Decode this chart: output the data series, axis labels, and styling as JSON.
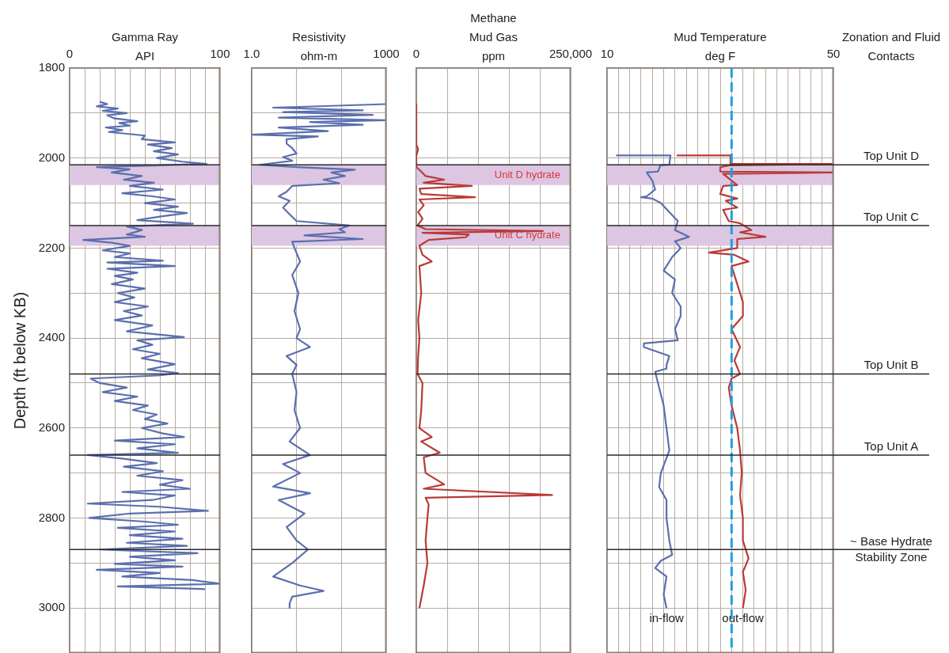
{
  "chart_data": [
    {
      "type": "line",
      "title": "Gamma Ray",
      "xlabel": "API",
      "ylabel": "Depth (ft below KB)",
      "xlim": [
        0,
        100
      ],
      "xticks": [
        0,
        {
          "value": 10,
          "label": null
        },
        {
          "value": 20,
          "label": null
        },
        {
          "value": 30,
          "label": null
        },
        {
          "value": 40,
          "label": null
        },
        {
          "value": 50,
          "label": null
        },
        {
          "value": 60,
          "label": null
        },
        {
          "value": 70,
          "label": null
        },
        {
          "value": 80,
          "label": null
        },
        {
          "value": 90,
          "label": null
        },
        100
      ],
      "ylim": [
        3100,
        1800
      ],
      "yticks": [
        1800,
        {
          "value": 1900,
          "label": null
        },
        2000,
        {
          "value": 2100,
          "label": null
        },
        2200,
        {
          "value": 2300,
          "label": null
        },
        2400,
        {
          "value": 2500,
          "label": null
        },
        2600,
        {
          "value": 2700,
          "label": null
        },
        2800,
        {
          "value": 2900,
          "label": null
        },
        3000
      ],
      "grid": true,
      "series": [
        {
          "color": "#5a6fae",
          "x": [
            20,
            25,
            18,
            32,
            22,
            38,
            25,
            30,
            45,
            33,
            40,
            24,
            35,
            26,
            50,
            48,
            70,
            52,
            68,
            56,
            72,
            58,
            75,
            91,
            60,
            18,
            40,
            28,
            48,
            36,
            56,
            40,
            62,
            35,
            55,
            70,
            50,
            72,
            56,
            78,
            60,
            45,
            82,
            38,
            48,
            38,
            50,
            9,
            28,
            40,
            22,
            40,
            30,
            62,
            25,
            70,
            25,
            45,
            30,
            42,
            28,
            50,
            32,
            43,
            30,
            52,
            36,
            48,
            30,
            55,
            38,
            76,
            45,
            55,
            42,
            60,
            48,
            70,
            52,
            72,
            60,
            14,
            20,
            38,
            22,
            45,
            30,
            52,
            42,
            58,
            50,
            65,
            48,
            62,
            76,
            30,
            70,
            45,
            72,
            12,
            35,
            58,
            36,
            62,
            45,
            75,
            60,
            80,
            35,
            70,
            55,
            12,
            60,
            92,
            40,
            13,
            50,
            72,
            32,
            70,
            40,
            75,
            38,
            78,
            20,
            85,
            40,
            70,
            30,
            75,
            18,
            60,
            35,
            82,
            100,
            32,
            90
          ],
          "values": [
            1875,
            1880,
            1885,
            1890,
            1895,
            1900,
            1905,
            1912,
            1918,
            1922,
            1928,
            1932,
            1938,
            1942,
            1950,
            1958,
            1965,
            1970,
            1978,
            1985,
            1992,
            2000,
            2008,
            2013,
            2016,
            2020,
            2025,
            2032,
            2040,
            2048,
            2055,
            2062,
            2070,
            2078,
            2085,
            2092,
            2100,
            2108,
            2115,
            2122,
            2130,
            2138,
            2146,
            2152,
            2160,
            2170,
            2175,
            2182,
            2188,
            2195,
            2205,
            2212,
            2220,
            2228,
            2232,
            2240,
            2246,
            2255,
            2262,
            2270,
            2280,
            2290,
            2300,
            2310,
            2320,
            2330,
            2340,
            2350,
            2360,
            2372,
            2385,
            2398,
            2405,
            2415,
            2425,
            2435,
            2445,
            2458,
            2470,
            2478,
            2483,
            2490,
            2500,
            2510,
            2520,
            2530,
            2540,
            2550,
            2560,
            2570,
            2580,
            2590,
            2600,
            2612,
            2620,
            2628,
            2636,
            2645,
            2655,
            2660,
            2668,
            2678,
            2686,
            2696,
            2706,
            2716,
            2726,
            2735,
            2742,
            2750,
            2760,
            2768,
            2775,
            2784,
            2790,
            2800,
            2808,
            2815,
            2822,
            2830,
            2838,
            2846,
            2855,
            2862,
            2870,
            2878,
            2886,
            2894,
            2902,
            2908,
            2915,
            2922,
            2930,
            2938,
            2946,
            2952,
            2958
          ]
        }
      ],
      "ref_lines": [
        {
          "axis": "y",
          "value": 2015
        },
        {
          "axis": "y",
          "value": 2150
        },
        {
          "axis": "y",
          "value": 2480
        },
        {
          "axis": "y",
          "value": 2660
        },
        {
          "axis": "y",
          "value": 2870
        }
      ],
      "bands": [
        {
          "axis": "y",
          "from": 2015,
          "to": 2060,
          "color": "#dcc6e2"
        },
        {
          "axis": "y",
          "from": 2150,
          "to": 2195,
          "color": "#dcc6e2"
        }
      ]
    },
    {
      "type": "line",
      "title": "Resistivity",
      "xlabel": "ohm-m",
      "log": "x",
      "tick_labels": "x",
      "xlim": [
        1,
        1000
      ],
      "xticks": [
        {
          "value": 1,
          "label": "1.0"
        },
        {
          "value": 10,
          "label": null
        },
        {
          "value": 100,
          "label": null
        },
        1000
      ],
      "ylim": [
        3100,
        1800
      ],
      "yticks": [
        1800,
        1900,
        2000,
        2100,
        2200,
        2300,
        2400,
        2500,
        2600,
        2700,
        2800,
        2900,
        3000
      ],
      "grid": true,
      "series": [
        {
          "color": "#5a6fae",
          "x": [
            1000,
            60,
            3,
            300,
            5,
            500,
            4,
            1000,
            20,
            300,
            4,
            50,
            1,
            30,
            6,
            6,
            8,
            10,
            5,
            8,
            1.5,
            10,
            200,
            60,
            120,
            40,
            90,
            8,
            6,
            4,
            7,
            5,
            7,
            10,
            150,
            90,
            120,
            15,
            300,
            8,
            9,
            12,
            8,
            11,
            9,
            12,
            10,
            20,
            6,
            10,
            8,
            10,
            9,
            12,
            7,
            20,
            5,
            12,
            3,
            20,
            4,
            15,
            6,
            10,
            18,
            8,
            3,
            12,
            40,
            8,
            7,
            7
          ],
          "values": [
            1880,
            1884,
            1888,
            1894,
            1898,
            1904,
            1910,
            1916,
            1920,
            1926,
            1932,
            1940,
            1948,
            1952,
            1958,
            1968,
            1978,
            1990,
            1998,
            2006,
            2015,
            2020,
            2026,
            2032,
            2040,
            2048,
            2056,
            2062,
            2075,
            2085,
            2095,
            2110,
            2125,
            2140,
            2150,
            2158,
            2165,
            2172,
            2180,
            2186,
            2200,
            2230,
            2260,
            2300,
            2340,
            2380,
            2400,
            2420,
            2440,
            2460,
            2480,
            2520,
            2560,
            2600,
            2630,
            2660,
            2680,
            2700,
            2730,
            2745,
            2760,
            2790,
            2820,
            2850,
            2870,
            2900,
            2930,
            2950,
            2962,
            2975,
            2990,
            3000
          ]
        }
      ],
      "ref_lines": [
        {
          "axis": "y",
          "value": 2015
        },
        {
          "axis": "y",
          "value": 2150
        },
        {
          "axis": "y",
          "value": 2480
        },
        {
          "axis": "y",
          "value": 2660
        },
        {
          "axis": "y",
          "value": 2870
        }
      ],
      "bands": [
        {
          "axis": "y",
          "from": 2015,
          "to": 2060,
          "color": "#dcc6e2"
        },
        {
          "axis": "y",
          "from": 2150,
          "to": 2195,
          "color": "#dcc6e2"
        }
      ]
    },
    {
      "type": "line",
      "title": "Methane Mud Gas",
      "xlabel": "ppm",
      "tick_labels": "x",
      "xlim": [
        0,
        250000
      ],
      "xticks": [
        0,
        {
          "value": 50000,
          "label": null
        },
        {
          "value": 100000,
          "label": null
        },
        {
          "value": 150000,
          "label": null
        },
        {
          "value": 200000,
          "label": null
        },
        {
          "value": 250000,
          "label": "250,000"
        }
      ],
      "ylim": [
        3100,
        1800
      ],
      "yticks": [
        1800,
        1900,
        2000,
        2100,
        2200,
        2300,
        2400,
        2500,
        2600,
        2700,
        2800,
        2900,
        3000
      ],
      "grid": true,
      "series": [
        {
          "color": "#b93a36",
          "x": [
            0,
            0,
            3000,
            0,
            0,
            8000,
            15000,
            45000,
            12000,
            90000,
            5000,
            8000,
            95000,
            5000,
            12000,
            3000,
            10000,
            2000,
            15000,
            205000,
            10000,
            85000,
            80000,
            20000,
            5000,
            10000,
            25000,
            5000,
            8000,
            3000,
            5000,
            3000,
            2000,
            10000,
            8000,
            5000,
            25000,
            8000,
            38000,
            12000,
            15000,
            45000,
            12000,
            220000,
            15000,
            20000,
            18000,
            15000,
            18000,
            12000,
            5000
          ],
          "values": [
            1880,
            1970,
            1980,
            1995,
            2020,
            2030,
            2040,
            2048,
            2055,
            2062,
            2068,
            2080,
            2087,
            2092,
            2105,
            2120,
            2135,
            2150,
            2158,
            2162,
            2166,
            2170,
            2176,
            2182,
            2195,
            2215,
            2230,
            2240,
            2300,
            2360,
            2400,
            2440,
            2480,
            2500,
            2560,
            2600,
            2620,
            2630,
            2655,
            2665,
            2700,
            2725,
            2735,
            2749,
            2755,
            2770,
            2800,
            2850,
            2900,
            2950,
            3000
          ]
        }
      ],
      "ref_lines": [
        {
          "axis": "y",
          "value": 2015
        },
        {
          "axis": "y",
          "value": 2150
        },
        {
          "axis": "y",
          "value": 2480
        },
        {
          "axis": "y",
          "value": 2660
        },
        {
          "axis": "y",
          "value": 2870
        }
      ],
      "bands": [
        {
          "axis": "y",
          "from": 2015,
          "to": 2060,
          "color": "#dcc6e2",
          "label": "Unit D hydrate"
        },
        {
          "axis": "y",
          "from": 2150,
          "to": 2195,
          "color": "#dcc6e2",
          "label": "Unit C hydrate"
        }
      ]
    },
    {
      "type": "line",
      "title": "Mud Temperature",
      "xlabel": "deg F",
      "tick_labels": "x",
      "xlim": [
        10,
        50
      ],
      "xticks": [
        10,
        {
          "value": 12,
          "label": null
        },
        {
          "value": 14,
          "label": null
        },
        {
          "value": 16,
          "label": null
        },
        {
          "value": 18,
          "label": null
        },
        {
          "value": 20,
          "label": null
        },
        {
          "value": 22,
          "label": null
        },
        {
          "value": 24,
          "label": null
        },
        {
          "value": 26,
          "label": null
        },
        {
          "value": 28,
          "label": null
        },
        {
          "value": 30,
          "label": null
        },
        {
          "value": 32,
          "label": null
        },
        {
          "value": 34,
          "label": null
        },
        {
          "value": 36,
          "label": null
        },
        {
          "value": 38,
          "label": null
        },
        {
          "value": 40,
          "label": null
        },
        {
          "value": 42,
          "label": null
        },
        {
          "value": 44,
          "label": null
        },
        {
          "value": 46,
          "label": null
        },
        {
          "value": 48,
          "label": null
        },
        50
      ],
      "ylim": [
        3100,
        1800
      ],
      "yticks": [
        1800,
        1900,
        2000,
        2100,
        2200,
        2300,
        2400,
        2500,
        2600,
        2700,
        2800,
        2900,
        3000
      ],
      "grid": true,
      "series": [
        {
          "name": "in-flow",
          "color": "#5a6fae",
          "x": [
            11.6,
            21.2,
            21,
            19.4,
            19,
            17,
            18,
            18.5,
            17,
            16,
            18,
            19.5,
            21,
            22.5,
            22,
            24.5,
            22,
            23,
            21.5,
            20,
            22,
            21.5,
            23,
            23,
            22,
            22.5,
            16.5,
            16.5,
            21,
            20.5,
            20.5,
            18.5,
            19,
            20,
            20.5,
            21,
            19.5,
            19.2,
            20.5,
            20.5,
            21,
            21.5,
            19.5,
            18.5,
            20.5,
            20,
            20.5
          ],
          "values": [
            1994,
            1994,
            2015,
            2016,
            2030,
            2032,
            2050,
            2070,
            2085,
            2087,
            2090,
            2100,
            2120,
            2140,
            2160,
            2175,
            2185,
            2200,
            2220,
            2250,
            2270,
            2300,
            2330,
            2351,
            2380,
            2405,
            2412,
            2420,
            2440,
            2460,
            2468,
            2475,
            2500,
            2550,
            2600,
            2650,
            2700,
            2731,
            2760,
            2800,
            2850,
            2882,
            2895,
            2911,
            2930,
            2970,
            3000
          ]
        },
        {
          "name": "out-flow",
          "color": "#b93a36",
          "x": [
            22.3,
            31.8,
            31.8,
            50,
            31.8,
            30,
            30,
            50,
            30.5,
            33,
            30.5,
            30,
            33,
            31,
            33,
            30.5,
            31.5,
            33.5,
            35.5,
            33.5,
            38,
            33,
            33,
            28,
            32.5,
            35,
            32,
            33,
            34,
            34,
            32,
            33.5,
            32.5,
            33.5,
            32,
            31.5,
            32,
            33,
            33.5,
            33.8,
            33.5,
            34,
            34,
            35,
            34,
            34.5,
            34
          ],
          "values": [
            1994,
            1994,
            2013,
            2013,
            2016,
            2020,
            2030,
            2032,
            2035,
            2060,
            2062,
            2080,
            2090,
            2095,
            2110,
            2115,
            2140,
            2145,
            2160,
            2165,
            2175,
            2180,
            2200,
            2210,
            2215,
            2230,
            2240,
            2280,
            2320,
            2351,
            2380,
            2420,
            2450,
            2480,
            2490,
            2510,
            2550,
            2600,
            2650,
            2700,
            2750,
            2800,
            2850,
            2890,
            2920,
            2960,
            3000
          ]
        }
      ],
      "ref_lines": [
        {
          "axis": "x",
          "value": 32,
          "color": "#1ba1e2",
          "line_style": "dashed"
        },
        {
          "axis": "y",
          "value": 2015,
          "label": "Top Unit D"
        },
        {
          "axis": "y",
          "value": 2150,
          "label": "Top Unit C"
        },
        {
          "axis": "y",
          "value": 2480,
          "label": "Top Unit B"
        },
        {
          "axis": "y",
          "value": 2660,
          "label": "Top Unit A"
        },
        {
          "axis": "y",
          "value": 2870,
          "label": "~ Base Hydrate Stability Zone"
        }
      ],
      "bands": [
        {
          "axis": "y",
          "from": 2015,
          "to": 2060,
          "color": "#dcc6e2"
        },
        {
          "axis": "y",
          "from": 2150,
          "to": 2195,
          "color": "#dcc6e2"
        }
      ],
      "annotations": [
        "Zonation and Fluid Contacts"
      ]
    }
  ]
}
